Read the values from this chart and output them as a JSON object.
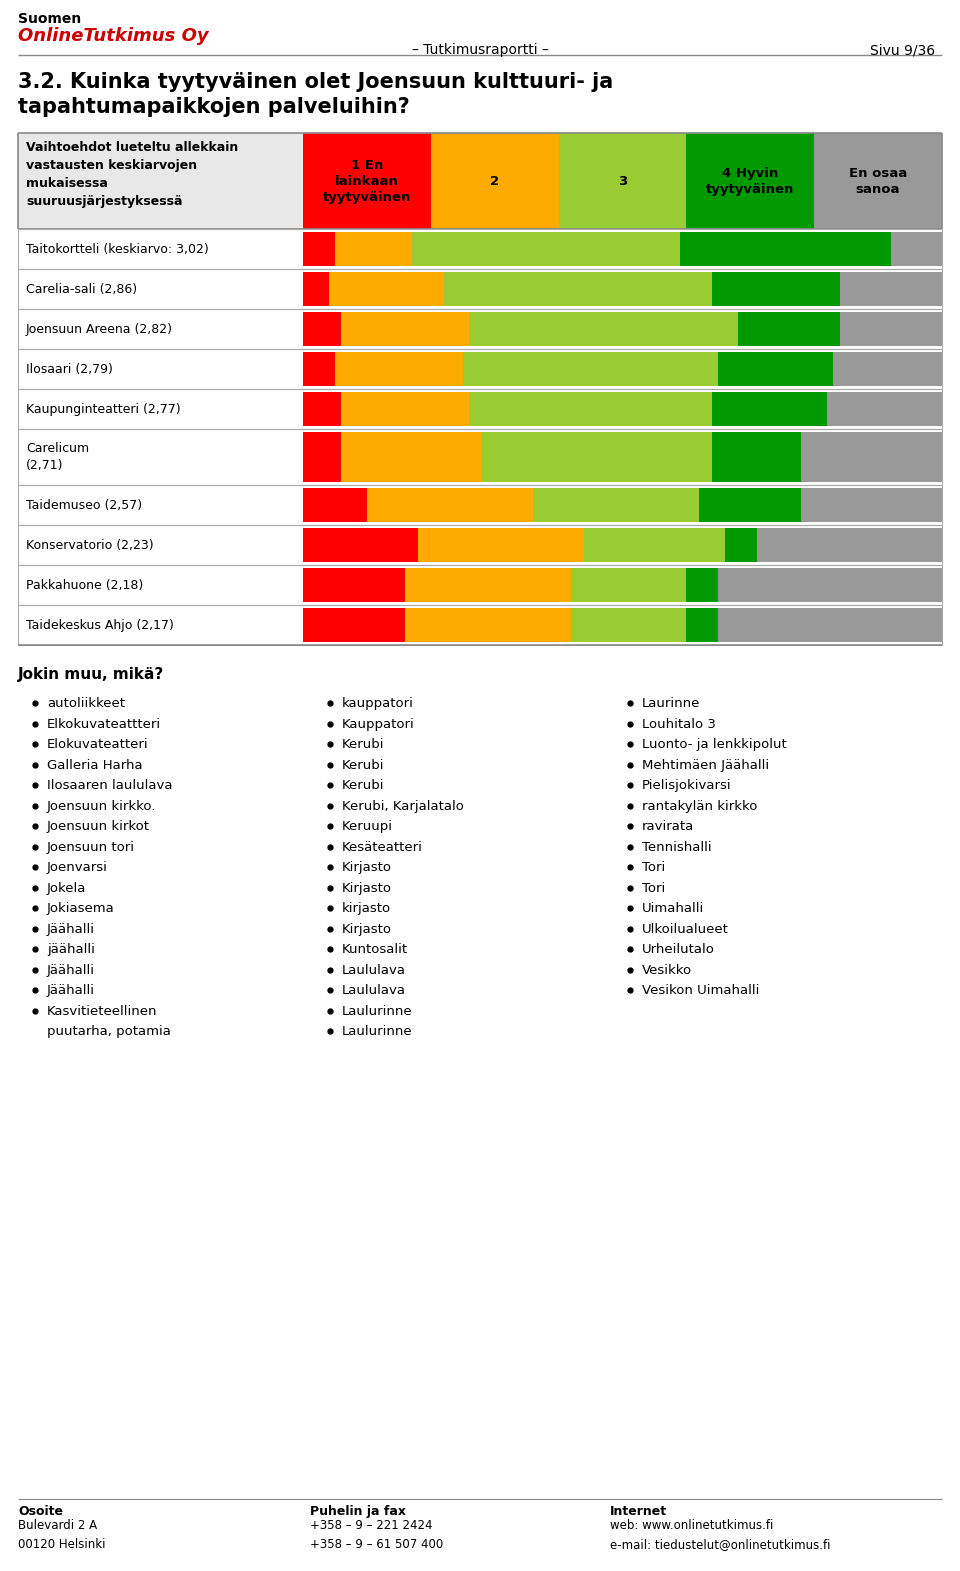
{
  "col_headers": [
    "1 En\nlainkaan\ntyytyväinen",
    "2",
    "3",
    "4 Hyvin\ntyytyväinen",
    "En osaa\nsanoa"
  ],
  "col_colors": [
    "#ff0000",
    "#ffaa00",
    "#99cc33",
    "#009900",
    "#999999"
  ],
  "rows": [
    {
      "label": "Taitokortteli (keskiarvo: 3,02)",
      "values": [
        5,
        12,
        42,
        33,
        8
      ]
    },
    {
      "label": "Carelia-sali (2,86)",
      "values": [
        4,
        18,
        42,
        20,
        16
      ]
    },
    {
      "label": "Joensuun Areena (2,82)",
      "values": [
        6,
        20,
        42,
        16,
        16
      ]
    },
    {
      "label": "Ilosaari (2,79)",
      "values": [
        5,
        20,
        40,
        18,
        17
      ]
    },
    {
      "label": "Kaupunginteatteri (2,77)",
      "values": [
        6,
        20,
        38,
        18,
        18
      ]
    },
    {
      "label": "Carelicum\n(2,71)",
      "values": [
        6,
        22,
        36,
        14,
        22
      ]
    },
    {
      "label": "Taidemuseo (2,57)",
      "values": [
        10,
        26,
        26,
        16,
        22
      ]
    },
    {
      "label": "Konservatorio (2,23)",
      "values": [
        18,
        26,
        22,
        5,
        29
      ]
    },
    {
      "label": "Pakkahuone (2,18)",
      "values": [
        16,
        26,
        18,
        5,
        35
      ]
    },
    {
      "label": "Taidekeskus Ahjo (2,17)",
      "values": [
        16,
        26,
        18,
        5,
        35
      ]
    }
  ],
  "bullet_col1": [
    "autoliikkeet",
    "Elkokuvateattteri",
    "Elokuvateatteri",
    "Galleria Harha",
    "Ilosaaren laululava",
    "Joensuun kirkko.",
    "Joensuun kirkot",
    "Joensuun tori",
    "Joenvarsi",
    "Jokela",
    "Jokiasema",
    "Jäähalli",
    "jäähalli",
    "Jäähalli",
    "Jäähalli",
    "Kasvitieteellinen",
    "puutarha, potamia"
  ],
  "bullet_col2": [
    "kauppatori",
    "Kauppatori",
    "Kerubi",
    "Kerubi",
    "Kerubi",
    "Kerubi, Karjalatalo",
    "Keruupi",
    "Kesäteatteri",
    "Kirjasto",
    "Kirjasto",
    "kirjasto",
    "Kirjasto",
    "Kuntosalit",
    "Laululava",
    "Laululava",
    "Laulurinne",
    "Laulurinne"
  ],
  "bullet_col3": [
    "Laurinne",
    "Louhitalo 3",
    "Luonto- ja lenkkipolut",
    "Mehtimäen Jäähalli",
    "Pielisjokivarsi",
    "rantakylän kirkko",
    "ravirata",
    "Tennishalli",
    "Tori",
    "Tori",
    "Uimahalli",
    "Ulkoilualueet",
    "Urheilutalo",
    "Vesikko",
    "Vesikon Uimahalli"
  ]
}
